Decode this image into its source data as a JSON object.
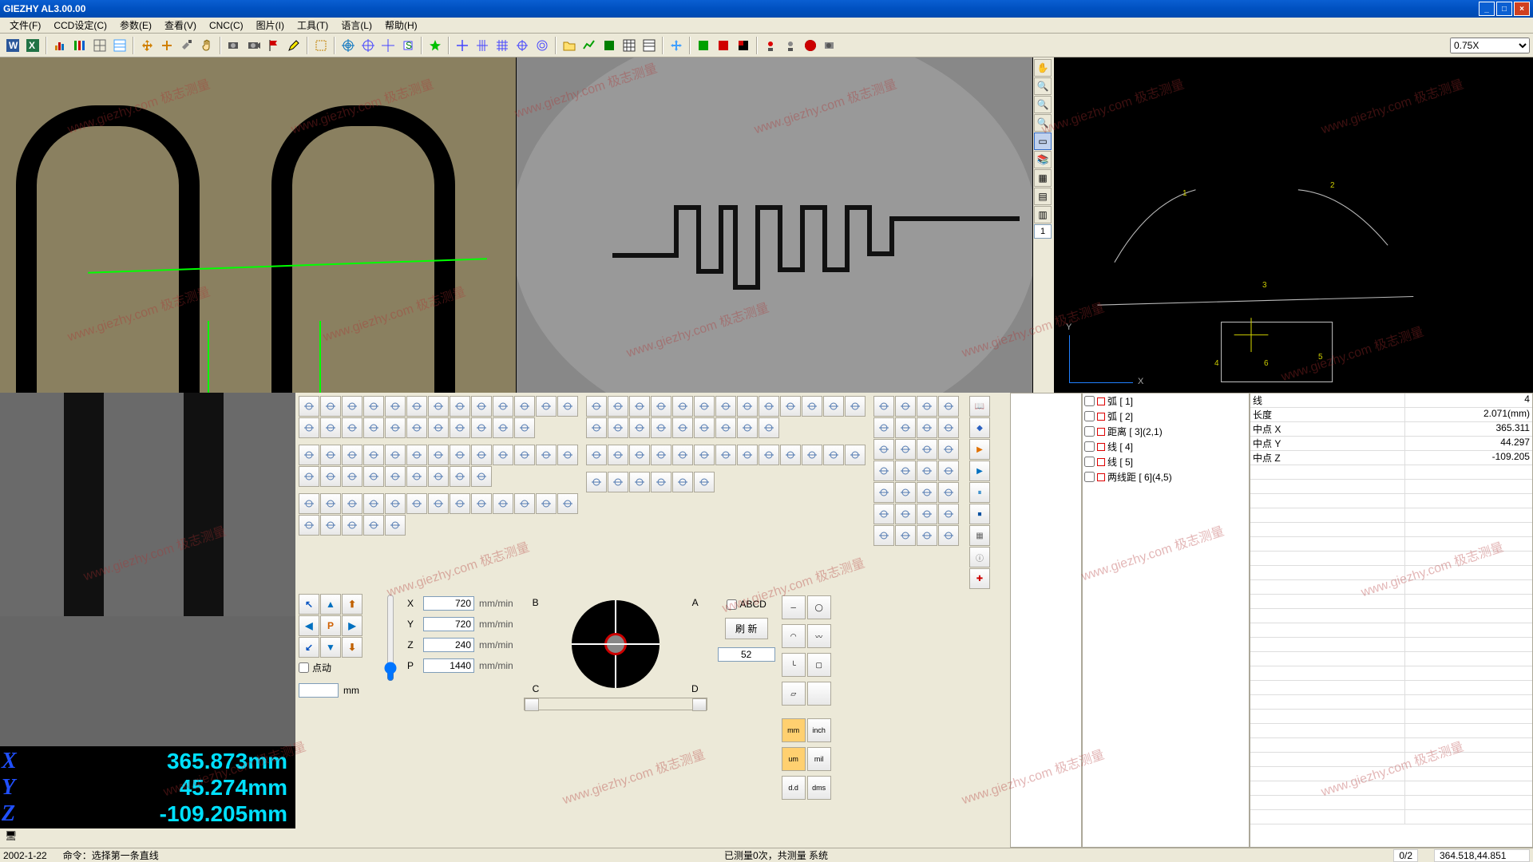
{
  "title": "GIEZHY AL3.00.00",
  "menus": [
    "文件(F)",
    "CCD设定(C)",
    "参数(E)",
    "查看(V)",
    "CNC(C)",
    "图片(I)",
    "工具(T)",
    "语言(L)",
    "帮助(H)"
  ],
  "zoom_value": "0.75X",
  "view_tools_input": "1",
  "coords": {
    "X": "365.873mm",
    "Y": "45.274mm",
    "Z": "-109.205mm"
  },
  "speeds": {
    "X": "720",
    "Y": "720",
    "Z": "240",
    "P": "1440",
    "unit": "mm/min",
    "jog_label": "点动",
    "mm_label": "mm"
  },
  "joy_labels": {
    "A": "A",
    "B": "B",
    "C": "C",
    "D": "D"
  },
  "abcd": {
    "chk": "ABCD",
    "refresh": "刷  新",
    "num": "52"
  },
  "cad_labels": {
    "Y": "Y",
    "X": "X",
    "n1": "1",
    "n2": "2",
    "n3": "3",
    "n4": "4",
    "n5": "5",
    "n6": "6"
  },
  "feature_list": [
    {
      "icon": "arc",
      "color": "#d00",
      "label": "弧 [ 1]"
    },
    {
      "icon": "arc",
      "color": "#d00",
      "label": "弧 [ 2]"
    },
    {
      "icon": "dist",
      "color": "#d00",
      "label": "距离 [ 3](2,1)"
    },
    {
      "icon": "line",
      "color": "#d00",
      "label": "线 [ 4]"
    },
    {
      "icon": "line",
      "color": "#d00",
      "label": "线 [ 5]"
    },
    {
      "icon": "dist2",
      "color": "#d00",
      "label": "两线距 [ 6](4,5)"
    }
  ],
  "prop_table": [
    [
      "线",
      "4"
    ],
    [
      "长度",
      "2.071(mm)"
    ],
    [
      "中点 X",
      "365.311"
    ],
    [
      "中点 Y",
      "44.297"
    ],
    [
      "中点 Z",
      "-109.205"
    ]
  ],
  "status": {
    "date": "2002-1-22",
    "cmd": "命令：选择第一条直线",
    "measure": "已测量0次，共测量  系统",
    "ratio": "0/2",
    "pos": "364.518,44.851"
  },
  "watermark": "www.giezhy.com  极志测量"
}
